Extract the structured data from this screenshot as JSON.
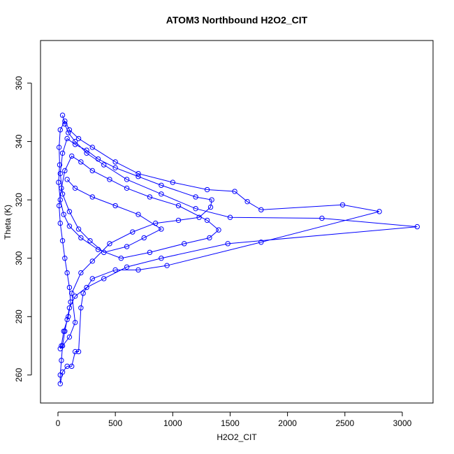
{
  "chart_data": {
    "type": "line",
    "title": "ATOM3 Northbound H2O2_CIT",
    "x_label": "H2O2_CIT",
    "y_label": "Theta (K)",
    "x": [
      40,
      60,
      90,
      150,
      250,
      400,
      600,
      900,
      1200,
      1500,
      2300,
      3130,
      1480,
      900,
      600,
      400,
      250,
      150,
      100,
      80,
      60,
      40,
      30,
      20,
      20,
      40,
      80,
      120,
      150,
      180,
      200,
      220,
      300,
      500,
      700,
      950,
      1770,
      2800,
      2480,
      1770,
      1650,
      1540,
      1300,
      1000,
      700,
      500,
      300,
      180,
      100,
      60,
      20,
      10,
      15,
      5,
      20,
      50,
      100,
      200,
      350,
      550,
      800,
      1100,
      1320,
      1400,
      1300,
      1050,
      800,
      600,
      450,
      300,
      200,
      120,
      60,
      30,
      10,
      20,
      40,
      60,
      80,
      100,
      110,
      90,
      50,
      30,
      20,
      100,
      150,
      120,
      200,
      300,
      450,
      650,
      850,
      1050,
      1230,
      1330,
      1340,
      1200,
      900,
      700,
      500,
      350,
      250,
      150,
      80,
      40,
      20,
      40,
      100,
      180,
      280,
      400,
      600,
      750,
      900,
      700,
      500,
      300,
      150,
      80
    ],
    "series": [
      {
        "name": "Theta",
        "color": "#0000ff",
        "values": [
          349,
          346,
          343,
          340,
          336,
          332,
          327,
          322,
          317,
          314,
          313.7,
          310.8,
          305,
          300,
          297,
          293,
          290,
          287,
          283,
          279,
          275,
          270,
          265,
          260,
          257,
          261,
          263,
          263,
          268,
          268,
          283,
          288,
          293,
          296,
          296,
          297.5,
          305.5,
          316,
          318.3,
          316.6,
          319.4,
          322.9,
          323.5,
          326,
          329,
          333,
          338,
          341,
          344,
          347,
          344,
          338,
          332,
          326,
          320,
          315,
          311,
          307,
          303,
          300,
          302,
          305,
          307,
          309.7,
          313,
          318,
          321,
          324,
          327,
          330,
          333,
          335,
          330,
          324,
          318,
          312,
          306,
          300,
          295,
          290,
          285,
          280,
          275,
          270,
          269,
          273,
          278,
          288,
          295,
          299,
          305,
          309,
          312,
          313,
          314,
          317.5,
          320,
          321,
          325,
          328,
          331,
          334,
          337,
          339,
          341,
          336,
          329,
          322,
          316,
          310,
          306,
          302,
          304,
          307,
          310,
          315,
          318,
          321,
          324,
          327
        ]
      }
    ],
    "xlim": [
      -152,
      3268
    ],
    "ylim": [
      250.4,
      374.6
    ],
    "xticks": [
      0,
      500,
      1000,
      1500,
      2000,
      2500,
      3000
    ],
    "yticks": [
      260,
      280,
      300,
      320,
      340,
      360
    ]
  }
}
